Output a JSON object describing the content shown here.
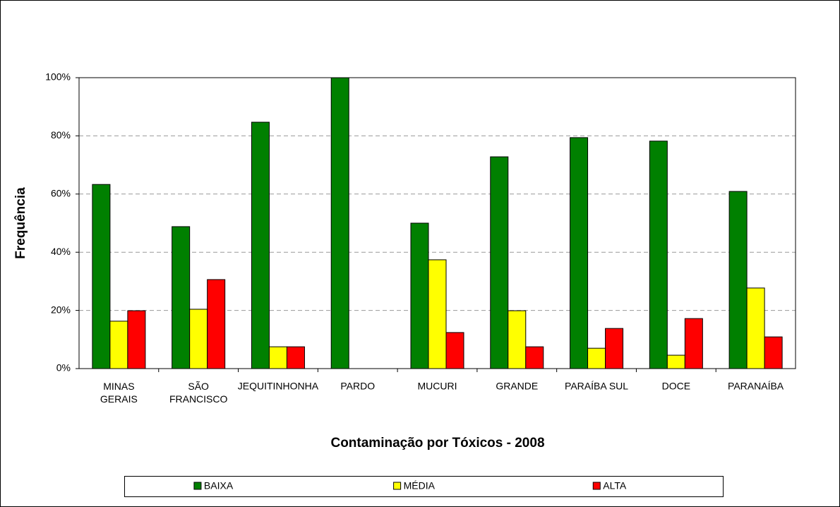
{
  "chart_data": {
    "type": "bar",
    "x_label": "Contaminação por Tóxicos - 2008",
    "y_label": "Frequência",
    "categories": [
      "MINAS GERAIS",
      "SÃO FRANCISCO",
      "JEQUITINHONHA",
      "PARDO",
      "MUCURI",
      "GRANDE",
      "PARAÍBA SUL",
      "DOCE",
      "PARANAÍBA"
    ],
    "series": [
      {
        "name": "BAIXA",
        "color": "#008000",
        "values": [
          63.3,
          48.8,
          84.7,
          100,
          50,
          72.8,
          79.4,
          78.2,
          60.9
        ]
      },
      {
        "name": "MÉDIA",
        "color": "#ffff00",
        "values": [
          16.3,
          20.4,
          7.5,
          0,
          37.4,
          19.9,
          7.0,
          4.6,
          27.7
        ]
      },
      {
        "name": "ALTA",
        "color": "#ff0000",
        "values": [
          19.9,
          30.6,
          7.5,
          0,
          12.4,
          7.5,
          13.8,
          17.2,
          10.9
        ]
      }
    ],
    "ylim": [
      0,
      100
    ],
    "yticks": [
      {
        "value": 0,
        "label": "0%"
      },
      {
        "value": 20,
        "label": "20%"
      },
      {
        "value": 40,
        "label": "40%"
      },
      {
        "value": 60,
        "label": "60%"
      },
      {
        "value": 80,
        "label": "80%"
      },
      {
        "value": 100,
        "label": "100%"
      }
    ],
    "grid": true,
    "legend": "bottom"
  }
}
